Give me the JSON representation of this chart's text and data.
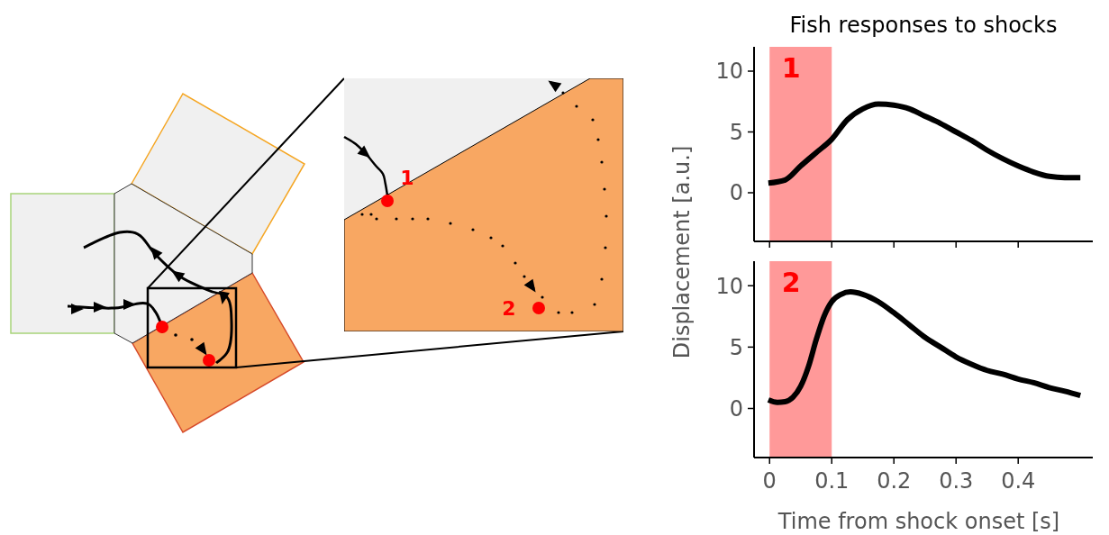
{
  "chart_data": [
    {
      "type": "other",
      "annotations": [
        "1",
        "2"
      ]
    },
    {
      "type": "line",
      "title": "Fish responses to shocks",
      "ylabel": "Displacement [a.u.]",
      "xlim": [
        -0.025,
        0.52
      ],
      "ylim": [
        -4,
        12
      ],
      "xticks": [
        0,
        0.1,
        0.2,
        0.3,
        0.4
      ],
      "yticks": [
        0,
        5,
        10
      ],
      "tick_labels": "y",
      "grid": false,
      "bands": [
        {
          "axis": "x",
          "from": 0,
          "to": 0.1,
          "label": "1",
          "color": "#ff9999"
        }
      ],
      "series": [
        {
          "color": "#000000",
          "x": [
            -0.002,
            0.025,
            0.05,
            0.075,
            0.1,
            0.125,
            0.15,
            0.175,
            0.2,
            0.225,
            0.25,
            0.275,
            0.3,
            0.325,
            0.35,
            0.375,
            0.4,
            0.425,
            0.45,
            0.475,
            0.5
          ],
          "values": [
            0.8,
            1.05,
            2.2,
            3.3,
            4.4,
            6.0,
            6.9,
            7.3,
            7.2,
            6.9,
            6.3,
            5.7,
            5.0,
            4.3,
            3.5,
            2.8,
            2.2,
            1.7,
            1.35,
            1.25,
            1.25
          ]
        }
      ]
    },
    {
      "type": "line",
      "xlabel": "Time from shock onset [s]",
      "xlim": [
        -0.025,
        0.52
      ],
      "ylim": [
        -4,
        12
      ],
      "xticks": [
        0,
        0.1,
        0.2,
        0.3,
        0.4
      ],
      "yticks": [
        0,
        5,
        10
      ],
      "grid": false,
      "bands": [
        {
          "axis": "x",
          "from": 0,
          "to": 0.1,
          "label": "2",
          "color": "#ff9999"
        }
      ],
      "series": [
        {
          "color": "#000000",
          "x": [
            -0.002,
            0.0125,
            0.025,
            0.0375,
            0.05,
            0.0625,
            0.075,
            0.0875,
            0.1,
            0.115,
            0.13,
            0.15,
            0.175,
            0.2,
            0.225,
            0.25,
            0.275,
            0.3,
            0.325,
            0.35,
            0.375,
            0.4,
            0.425,
            0.45,
            0.475,
            0.5
          ],
          "values": [
            0.7,
            0.5,
            0.55,
            0.9,
            1.8,
            3.4,
            5.6,
            7.5,
            8.7,
            9.3,
            9.5,
            9.3,
            8.7,
            7.8,
            6.8,
            5.8,
            5.0,
            4.2,
            3.6,
            3.1,
            2.8,
            2.4,
            2.1,
            1.7,
            1.4,
            1.05
          ]
        }
      ]
    }
  ]
}
